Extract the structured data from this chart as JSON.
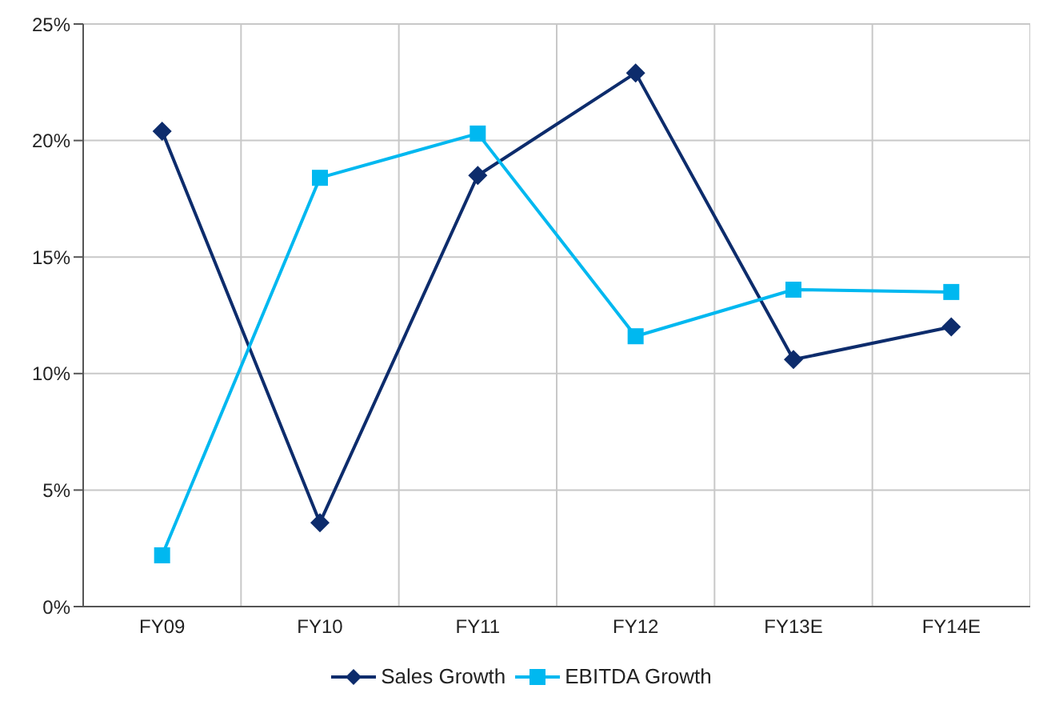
{
  "chart_data": {
    "type": "line",
    "categories": [
      "FY09",
      "FY10",
      "FY11",
      "FY12",
      "FY13E",
      "FY14E"
    ],
    "series": [
      {
        "name": "Sales Growth",
        "color": "#0d2c6c",
        "marker": "diamond",
        "values": [
          20.4,
          3.6,
          18.5,
          22.9,
          10.6,
          12.0
        ]
      },
      {
        "name": "EBITDA Growth",
        "color": "#00b8f0",
        "marker": "square",
        "values": [
          2.2,
          18.4,
          20.3,
          11.6,
          13.6,
          13.5
        ]
      }
    ],
    "ylim": [
      0,
      25
    ],
    "yticks": [
      {
        "value": 0,
        "label": "0%"
      },
      {
        "value": 5,
        "label": "5%"
      },
      {
        "value": 10,
        "label": "10%"
      },
      {
        "value": 15,
        "label": "15%"
      },
      {
        "value": 20,
        "label": "20%"
      },
      {
        "value": 25,
        "label": "25%"
      }
    ],
    "grid": true,
    "legend": "bottom"
  }
}
